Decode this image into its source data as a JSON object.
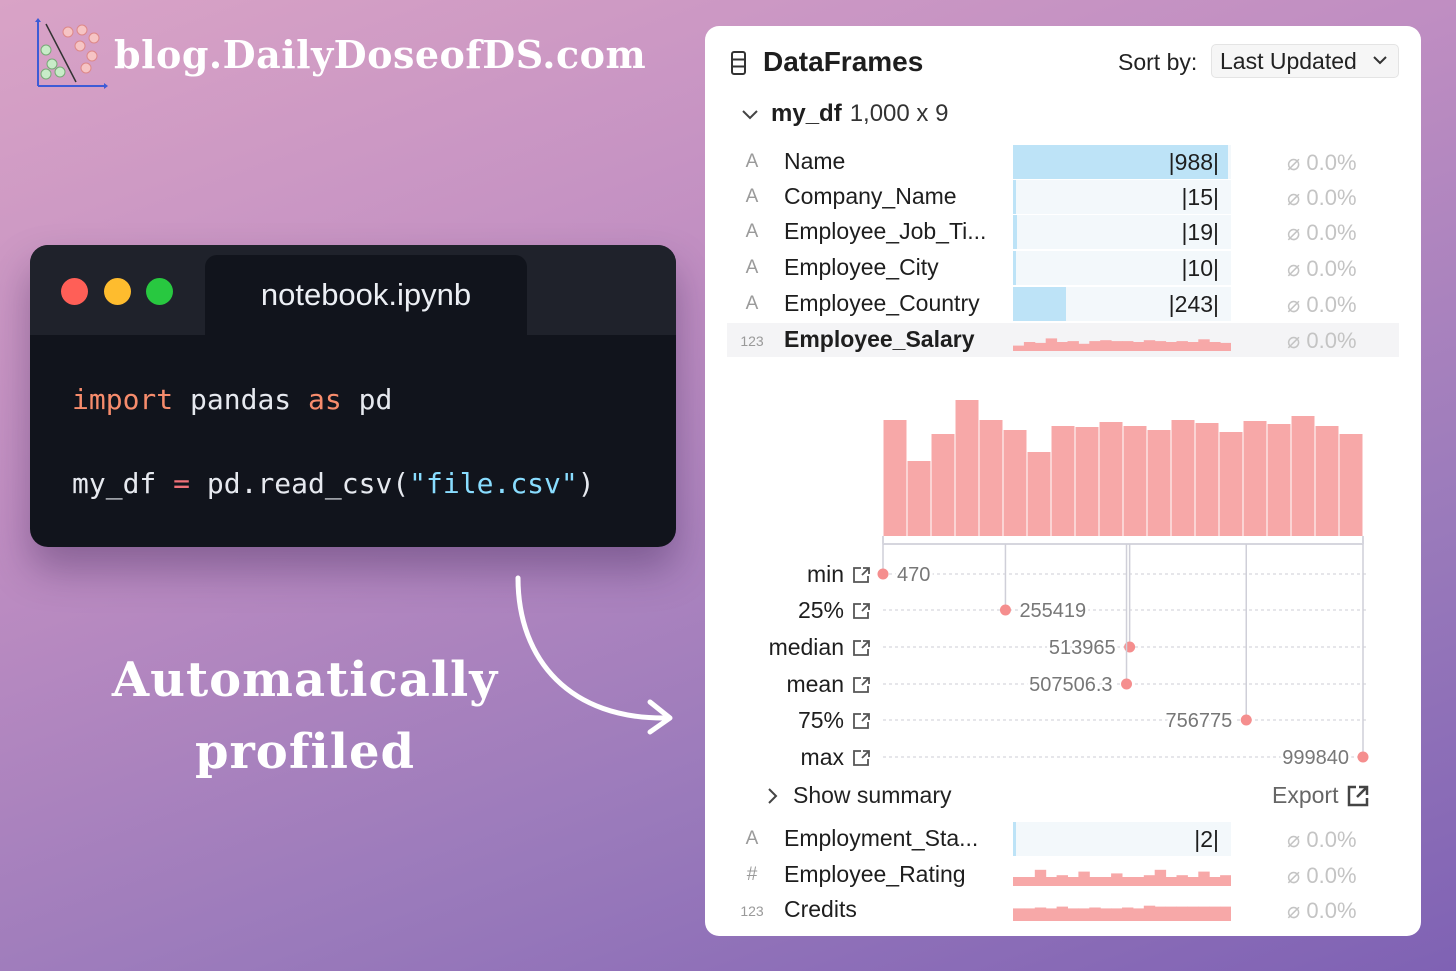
{
  "brand": {
    "site": "blog.DailyDoseofDS.com"
  },
  "notebook": {
    "tab_title": "notebook.ipynb",
    "line1": {
      "kw1": "import",
      "mod": " pandas ",
      "kw2": "as",
      "alias": " pd"
    },
    "line2": {
      "var": "my_df ",
      "op": "=",
      "call": " pd.read_csv(",
      "arg": "\"file.csv\"",
      "close": ")"
    }
  },
  "caption": {
    "line1": "Automatically",
    "line2": "profiled"
  },
  "panel": {
    "title": "DataFrames",
    "sort_label": "Sort by:",
    "sort_value": "Last Updated",
    "df_name": "my_df",
    "df_shape": "1,000 x 9",
    "columns": [
      {
        "type_icon": "A",
        "name": "Name",
        "unique": "|988|",
        "missing": "⌀ 0.0%",
        "fill": 0.988
      },
      {
        "type_icon": "A",
        "name": "Company_Name",
        "unique": "|15|",
        "missing": "⌀ 0.0%",
        "fill": 0.015
      },
      {
        "type_icon": "A",
        "name": "Employee_Job_Ti...",
        "unique": "|19|",
        "missing": "⌀ 0.0%",
        "fill": 0.019
      },
      {
        "type_icon": "A",
        "name": "Employee_City",
        "unique": "|10|",
        "missing": "⌀ 0.0%",
        "fill": 0.01
      },
      {
        "type_icon": "A",
        "name": "Employee_Country",
        "unique": "|243|",
        "missing": "⌀ 0.0%",
        "fill": 0.243
      },
      {
        "type_icon": "123",
        "name": "Employee_Salary",
        "missing": "⌀ 0.0%"
      }
    ],
    "stats": [
      {
        "label": "min",
        "value": "470",
        "n": 470
      },
      {
        "label": "25%",
        "value": "255419",
        "n": 255419
      },
      {
        "label": "median",
        "value": "513965",
        "n": 513965
      },
      {
        "label": "mean",
        "value": "507506.3",
        "n": 507506.3
      },
      {
        "label": "75%",
        "value": "756775",
        "n": 756775
      },
      {
        "label": "max",
        "value": "999840",
        "n": 999840
      }
    ],
    "show_summary": "Show summary",
    "export": "Export",
    "columns_after": [
      {
        "type_icon": "A",
        "name": "Employment_Sta...",
        "unique": "|2|",
        "missing": "⌀ 0.0%",
        "fill": 0.002
      },
      {
        "type_icon": "#",
        "name": "Employee_Rating",
        "missing": "⌀ 0.0%"
      },
      {
        "type_icon": "123",
        "name": "Credits",
        "missing": "⌀ 0.0%"
      }
    ]
  },
  "chart_data": {
    "type": "bar",
    "title": "",
    "xlabel": "",
    "ylabel": "",
    "xlim": [
      470,
      999840
    ],
    "values": [
      116,
      75,
      102,
      136,
      116,
      106,
      84,
      110,
      109,
      114,
      110,
      106,
      116,
      113,
      104,
      115,
      112,
      120,
      110,
      102
    ]
  },
  "colors": {
    "hist": "#f7a8a8",
    "bar_blue": "#bde3f7",
    "accent_dot": "#f58e8e"
  }
}
